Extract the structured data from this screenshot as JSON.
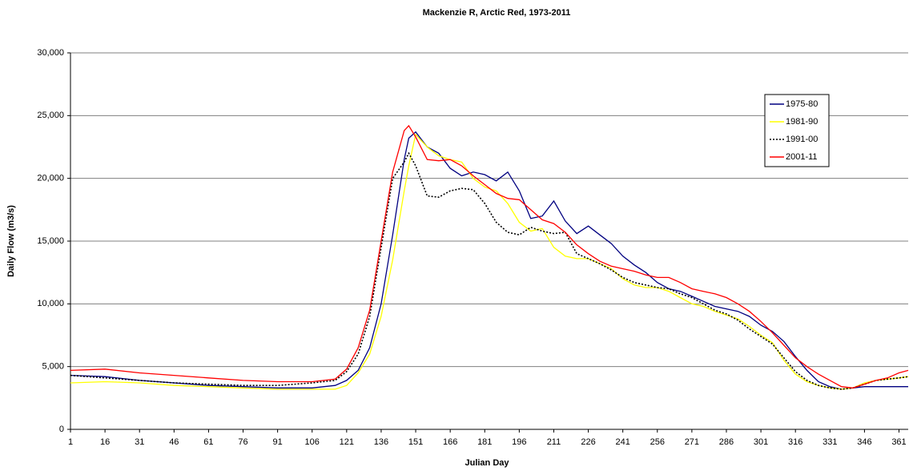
{
  "chart_data": {
    "type": "line",
    "title": "Mackenzie R, Arctic Red, 1973-2011",
    "x_label": "Julian Day",
    "y_label": "Daily Flow (m3/s)",
    "x": [
      1,
      16,
      31,
      46,
      61,
      76,
      91,
      106,
      116,
      121,
      126,
      131,
      136,
      141,
      146,
      148,
      151,
      156,
      161,
      166,
      171,
      176,
      181,
      186,
      191,
      196,
      201,
      206,
      211,
      216,
      221,
      226,
      231,
      236,
      241,
      246,
      251,
      256,
      261,
      266,
      271,
      276,
      281,
      286,
      291,
      296,
      301,
      306,
      311,
      316,
      321,
      326,
      331,
      336,
      341,
      346,
      351,
      356,
      361,
      365
    ],
    "xlim": [
      1,
      365
    ],
    "xticks": [
      1,
      16,
      31,
      46,
      61,
      76,
      91,
      106,
      121,
      136,
      151,
      166,
      181,
      196,
      211,
      226,
      241,
      256,
      271,
      286,
      301,
      316,
      331,
      346,
      361
    ],
    "ylim": [
      0,
      30000
    ],
    "yticks": [
      0,
      {
        "value": 5000,
        "label": "5,000"
      },
      {
        "value": 10000,
        "label": "10,000"
      },
      {
        "value": 15000,
        "label": "15,000"
      },
      {
        "value": 20000,
        "label": "20,000"
      },
      {
        "value": 25000,
        "label": "25,000"
      },
      {
        "value": 30000,
        "label": "30,000"
      }
    ],
    "grid": true,
    "legend": "upper right",
    "series": [
      {
        "name": "1975-80",
        "color": "#000080",
        "line_style": "solid",
        "values": [
          4300,
          4200,
          3900,
          3700,
          3500,
          3400,
          3300,
          3300,
          3500,
          3900,
          4700,
          6500,
          10000,
          15500,
          21500,
          23200,
          23700,
          22500,
          22000,
          20800,
          20200,
          20500,
          20300,
          19800,
          20500,
          19000,
          16800,
          17000,
          18200,
          16600,
          15600,
          16200,
          15500,
          14800,
          13800,
          13100,
          12500,
          11700,
          11200,
          11000,
          10600,
          10200,
          9800,
          9600,
          9400,
          9000,
          8300,
          7800,
          7000,
          5800,
          4700,
          3800,
          3400,
          3200,
          3300,
          3400,
          3400,
          3400,
          3400,
          3400
        ]
      },
      {
        "name": "1981-90",
        "color": "#ffff00",
        "line_style": "solid",
        "values": [
          3700,
          3800,
          3700,
          3500,
          3400,
          3300,
          3200,
          3200,
          3200,
          3500,
          4500,
          6000,
          9000,
          13500,
          19000,
          21000,
          23500,
          22500,
          21800,
          21500,
          21300,
          20000,
          19300,
          19000,
          18000,
          16500,
          15800,
          16000,
          14500,
          13800,
          13600,
          13600,
          13200,
          12800,
          12000,
          11500,
          11300,
          11300,
          11000,
          10500,
          10000,
          9800,
          9400,
          9100,
          8800,
          8200,
          7500,
          6900,
          5500,
          4400,
          3800,
          3500,
          3300,
          3200,
          3300,
          3700,
          3900,
          4000,
          4100,
          4200
        ]
      },
      {
        "name": "1991-00",
        "color": "#000000",
        "line_style": "dotted",
        "values": [
          4300,
          4100,
          3900,
          3700,
          3600,
          3500,
          3500,
          3700,
          3900,
          4600,
          6000,
          9000,
          14500,
          20000,
          21300,
          22000,
          21000,
          18600,
          18500,
          19000,
          19200,
          19100,
          18000,
          16500,
          15700,
          15500,
          16100,
          15800,
          15600,
          15700,
          14000,
          13600,
          13200,
          12700,
          12100,
          11700,
          11500,
          11300,
          11200,
          10800,
          10500,
          10000,
          9500,
          9200,
          8700,
          8000,
          7400,
          6800,
          5700,
          4600,
          3900,
          3500,
          3300,
          3200,
          3300,
          3600,
          3900,
          4000,
          4100,
          4200
        ]
      },
      {
        "name": "2001-11",
        "color": "#ff0000",
        "line_style": "solid",
        "values": [
          4700,
          4800,
          4500,
          4300,
          4100,
          3900,
          3800,
          3800,
          4000,
          4800,
          6500,
          9500,
          15000,
          20500,
          23800,
          24200,
          23300,
          21500,
          21400,
          21500,
          21000,
          20200,
          19500,
          18800,
          18400,
          18300,
          17500,
          16700,
          16400,
          15700,
          14700,
          14000,
          13400,
          13000,
          12800,
          12600,
          12300,
          12100,
          12100,
          11700,
          11200,
          11000,
          10800,
          10500,
          10000,
          9400,
          8600,
          7700,
          6700,
          5700,
          5000,
          4400,
          3900,
          3400,
          3300,
          3600,
          3900,
          4100,
          4500,
          4700
        ]
      }
    ]
  }
}
